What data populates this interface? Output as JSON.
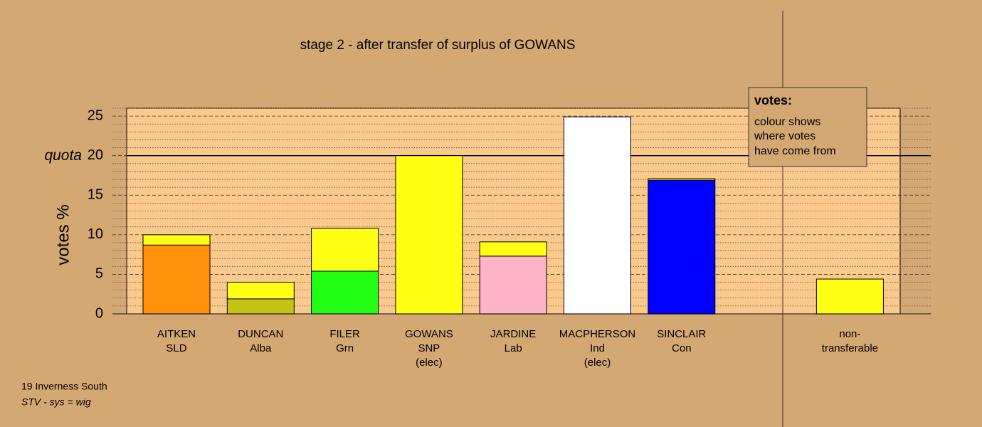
{
  "chart_data": {
    "type": "stacked_bar",
    "title": "stage 2 - after transfer of surplus of GOWANS",
    "ylabel": "votes %",
    "categories": [
      [
        "AITKEN",
        "SLD"
      ],
      [
        "DUNCAN",
        "Alba"
      ],
      [
        "FILER",
        "Grn"
      ],
      [
        "GOWANS",
        "SNP",
        "(elec)"
      ],
      [
        "JARDINE",
        "Lab"
      ],
      [
        "MACPHERSON",
        "Ind",
        "(elec)"
      ],
      [
        "SINCLAIR",
        "Con"
      ],
      null,
      [
        "non-",
        "transferable"
      ]
    ],
    "series": [
      {
        "colors": [
          "#ff9208",
          "#c3c314",
          "#22ff14",
          "#ffff14",
          "#ffb3c6",
          "#ffffff",
          "#0000ff",
          null,
          "#ffff14"
        ],
        "values": [
          8.7,
          1.9,
          5.4,
          20.0,
          7.3,
          24.9,
          16.9,
          null,
          0
        ]
      },
      {
        "color": "#ffff14",
        "values": [
          1.3,
          2.1,
          5.4,
          0,
          1.8,
          0,
          0.2,
          null,
          4.4
        ]
      }
    ],
    "ylim": [
      0,
      26
    ],
    "yticks": [
      0,
      5,
      10,
      15,
      20,
      25
    ],
    "yminor": [
      1,
      2,
      3,
      4,
      6,
      7,
      8,
      9,
      11,
      12,
      13,
      14,
      16,
      17,
      18,
      19,
      21,
      22,
      23,
      24,
      26
    ],
    "quota": {
      "value": 20,
      "label": "quota"
    },
    "legend": {
      "title": "votes:",
      "lines": [
        "colour shows",
        "where votes",
        "have come from"
      ]
    },
    "footer": [
      "19 Inverness South",
      "STV - sys = wig"
    ]
  }
}
